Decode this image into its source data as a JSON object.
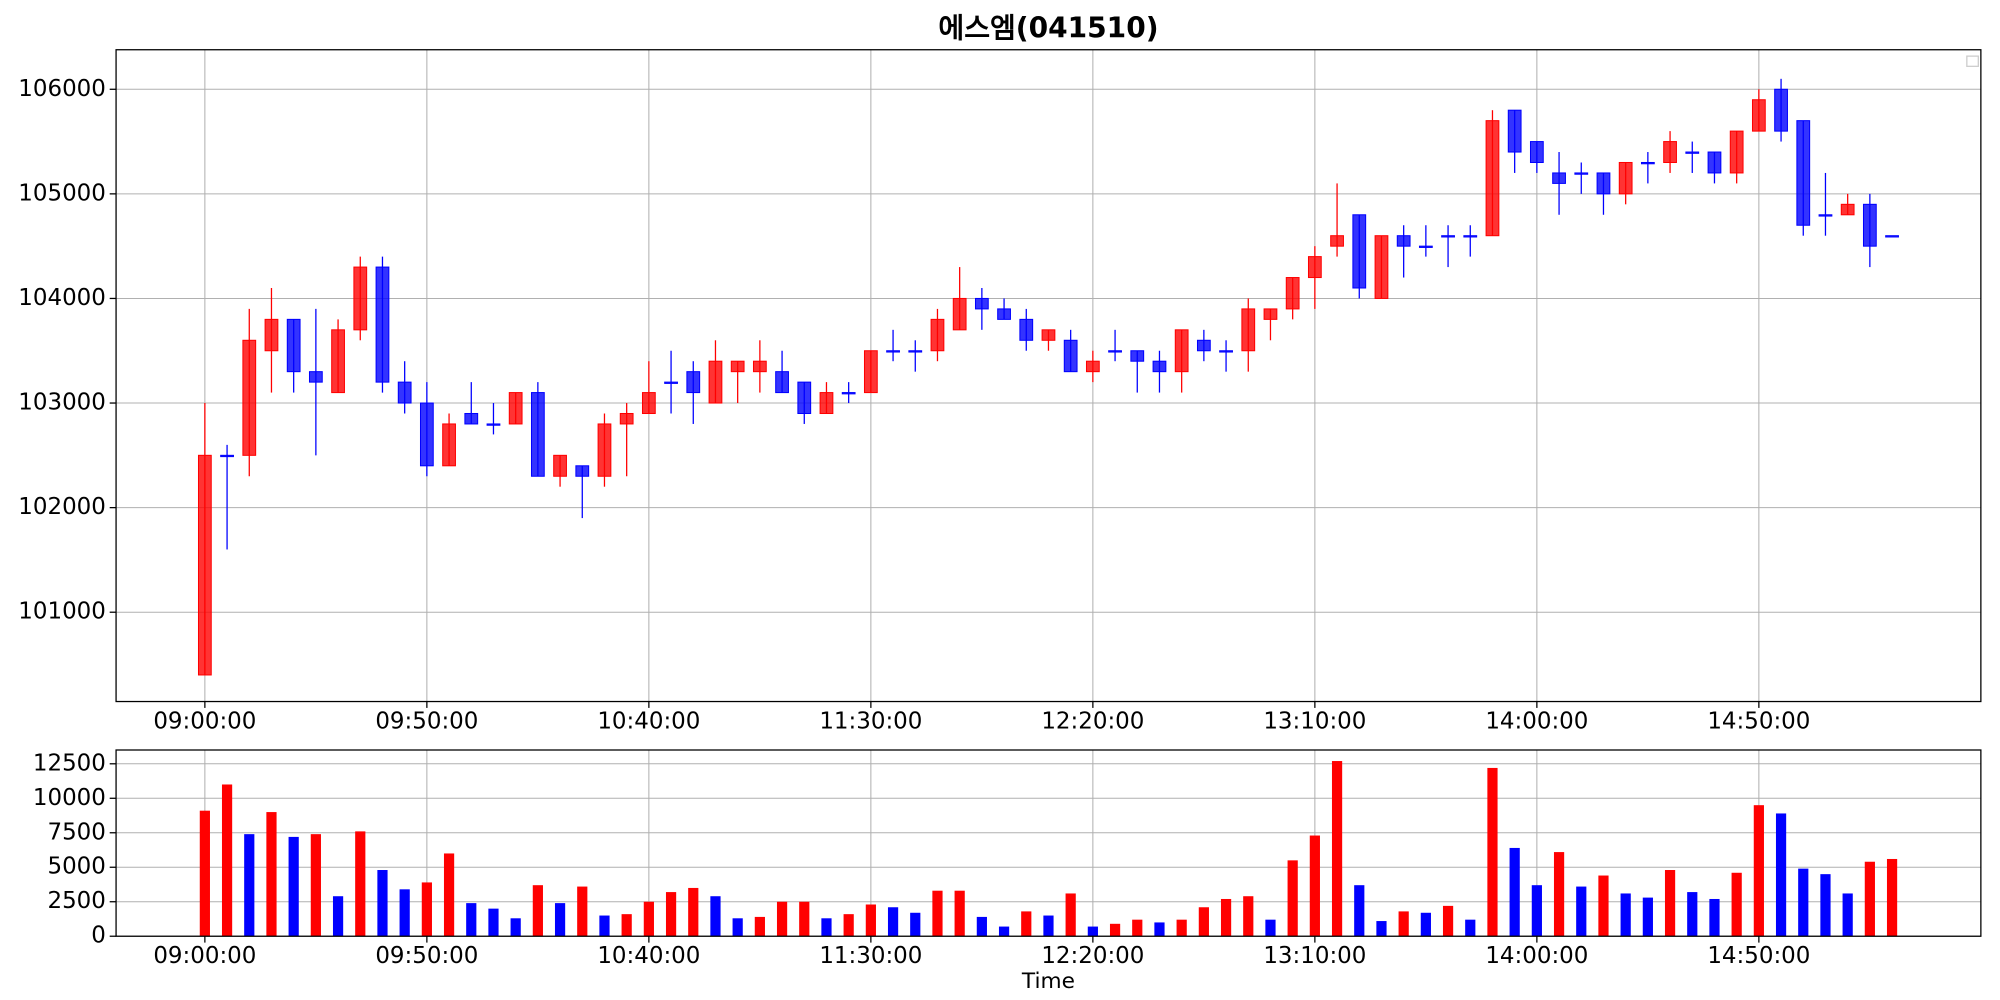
{
  "chart_data": [
    {
      "type": "candlestick",
      "title": "에스엠(041510)",
      "x": [
        "09:00:00",
        "09:05:00",
        "09:10:00",
        "09:15:00",
        "09:20:00",
        "09:25:00",
        "09:30:00",
        "09:35:00",
        "09:40:00",
        "09:45:00",
        "09:50:00",
        "09:55:00",
        "10:00:00",
        "10:05:00",
        "10:10:00",
        "10:15:00",
        "10:20:00",
        "10:25:00",
        "10:30:00",
        "10:35:00",
        "10:40:00",
        "10:45:00",
        "10:50:00",
        "10:55:00",
        "11:00:00",
        "11:05:00",
        "11:10:00",
        "11:15:00",
        "11:20:00",
        "11:25:00",
        "11:30:00",
        "11:35:00",
        "11:40:00",
        "11:45:00",
        "11:50:00",
        "11:55:00",
        "12:00:00",
        "12:05:00",
        "12:10:00",
        "12:15:00",
        "12:20:00",
        "12:25:00",
        "12:30:00",
        "12:35:00",
        "12:40:00",
        "12:45:00",
        "12:50:00",
        "12:55:00",
        "13:00:00",
        "13:05:00",
        "13:10:00",
        "13:15:00",
        "13:20:00",
        "13:25:00",
        "13:30:00",
        "13:35:00",
        "13:40:00",
        "13:45:00",
        "13:50:00",
        "13:55:00",
        "14:00:00",
        "14:05:00",
        "14:10:00",
        "14:15:00",
        "14:20:00",
        "14:25:00",
        "14:30:00",
        "14:35:00",
        "14:40:00",
        "14:45:00",
        "14:50:00",
        "14:55:00",
        "15:00:00",
        "15:05:00",
        "15:10:00",
        "15:15:00",
        "15:20:00"
      ],
      "open": [
        100400,
        102500,
        102500,
        103500,
        103800,
        103300,
        103100,
        103700,
        104300,
        103200,
        103000,
        102400,
        102900,
        102800,
        102800,
        103100,
        102300,
        102400,
        102300,
        102800,
        102900,
        103200,
        103300,
        103000,
        103300,
        103300,
        103300,
        103200,
        102900,
        103100,
        103100,
        103500,
        103500,
        103500,
        103700,
        104000,
        103900,
        103800,
        103600,
        103600,
        103300,
        103500,
        103500,
        103400,
        103300,
        103600,
        103500,
        103500,
        103800,
        103900,
        104200,
        104500,
        104800,
        104000,
        104600,
        104500,
        104600,
        104600,
        104600,
        105800,
        105500,
        105200,
        105200,
        105200,
        105000,
        105300,
        105300,
        105400,
        105400,
        105200,
        105600,
        106000,
        105700,
        104800,
        104800,
        104900,
        104600
      ],
      "high": [
        103000,
        102600,
        103900,
        104100,
        103800,
        103900,
        103800,
        104400,
        104400,
        103400,
        103200,
        102900,
        103200,
        103000,
        103100,
        103200,
        102500,
        102400,
        102900,
        103000,
        103400,
        103500,
        103400,
        103600,
        103400,
        103600,
        103500,
        103200,
        103200,
        103200,
        103500,
        103700,
        103600,
        103900,
        104300,
        104100,
        104000,
        103900,
        103700,
        103700,
        103500,
        103700,
        103500,
        103500,
        103700,
        103700,
        103600,
        104000,
        103900,
        104200,
        104500,
        105100,
        104800,
        104600,
        104700,
        104700,
        104700,
        104700,
        105800,
        105800,
        105500,
        105400,
        105300,
        105200,
        105300,
        105400,
        105600,
        105500,
        105400,
        105600,
        106000,
        106100,
        105700,
        105200,
        105000,
        105000,
        104600
      ],
      "low": [
        100400,
        101600,
        102300,
        103100,
        103100,
        102500,
        103100,
        103600,
        103100,
        102900,
        102300,
        102400,
        102800,
        102700,
        102800,
        102300,
        102200,
        101900,
        102200,
        102300,
        102900,
        102900,
        102800,
        103000,
        103000,
        103100,
        103100,
        102800,
        102900,
        103000,
        103100,
        103400,
        103300,
        103400,
        103700,
        103700,
        103800,
        103500,
        103500,
        103300,
        103200,
        103400,
        103100,
        103100,
        103100,
        103400,
        103300,
        103300,
        103600,
        103800,
        103900,
        104400,
        104000,
        104000,
        104200,
        104400,
        104300,
        104400,
        104600,
        105200,
        105200,
        104800,
        105000,
        104800,
        104900,
        105100,
        105200,
        105200,
        105100,
        105100,
        105600,
        105500,
        104600,
        104600,
        104800,
        104300,
        104600
      ],
      "close": [
        102500,
        102500,
        103600,
        103800,
        103300,
        103200,
        103700,
        104300,
        103200,
        103000,
        102400,
        102800,
        102800,
        102800,
        103100,
        102300,
        102500,
        102300,
        102800,
        102900,
        103100,
        103200,
        103100,
        103400,
        103400,
        103400,
        103100,
        102900,
        103100,
        103100,
        103500,
        103500,
        103500,
        103800,
        104000,
        103900,
        103800,
        103600,
        103700,
        103300,
        103400,
        103500,
        103400,
        103300,
        103700,
        103500,
        103500,
        103900,
        103900,
        104200,
        104400,
        104600,
        104100,
        104600,
        104500,
        104500,
        104600,
        104600,
        105700,
        105400,
        105300,
        105100,
        105200,
        105000,
        105300,
        105300,
        105500,
        105400,
        105200,
        105600,
        105900,
        105600,
        104700,
        104800,
        104900,
        104500,
        104600
      ],
      "up_color": "#ff0000",
      "down_color": "#0000ff",
      "ylim": [
        100146,
        106378
      ],
      "yticks": [
        101000,
        102000,
        103000,
        104000,
        105000,
        106000
      ],
      "xticks": [
        "09:00:00",
        "09:50:00",
        "10:40:00",
        "11:30:00",
        "12:20:00",
        "13:10:00",
        "14:00:00",
        "14:50:00"
      ],
      "grid": true
    },
    {
      "type": "bar",
      "xlabel": "Time",
      "x": [
        "09:00:00",
        "09:05:00",
        "09:10:00",
        "09:15:00",
        "09:20:00",
        "09:25:00",
        "09:30:00",
        "09:35:00",
        "09:40:00",
        "09:45:00",
        "09:50:00",
        "09:55:00",
        "10:00:00",
        "10:05:00",
        "10:10:00",
        "10:15:00",
        "10:20:00",
        "10:25:00",
        "10:30:00",
        "10:35:00",
        "10:40:00",
        "10:45:00",
        "10:50:00",
        "10:55:00",
        "11:00:00",
        "11:05:00",
        "11:10:00",
        "11:15:00",
        "11:20:00",
        "11:25:00",
        "11:30:00",
        "11:35:00",
        "11:40:00",
        "11:45:00",
        "11:50:00",
        "11:55:00",
        "12:00:00",
        "12:05:00",
        "12:10:00",
        "12:15:00",
        "12:20:00",
        "12:25:00",
        "12:30:00",
        "12:35:00",
        "12:40:00",
        "12:45:00",
        "12:50:00",
        "12:55:00",
        "13:00:00",
        "13:05:00",
        "13:10:00",
        "13:15:00",
        "13:20:00",
        "13:25:00",
        "13:30:00",
        "13:35:00",
        "13:40:00",
        "13:45:00",
        "13:50:00",
        "13:55:00",
        "14:00:00",
        "14:05:00",
        "14:10:00",
        "14:15:00",
        "14:20:00",
        "14:25:00",
        "14:30:00",
        "14:35:00",
        "14:40:00",
        "14:45:00",
        "14:50:00",
        "14:55:00",
        "15:00:00",
        "15:05:00",
        "15:10:00",
        "15:15:00",
        "15:20:00"
      ],
      "values": [
        9100,
        11000,
        7400,
        9000,
        7200,
        7400,
        2900,
        7600,
        4800,
        3400,
        3900,
        6000,
        2400,
        2000,
        1300,
        3700,
        2400,
        3600,
        1500,
        1600,
        2500,
        3200,
        3500,
        2900,
        1300,
        1400,
        2500,
        2500,
        1300,
        1600,
        2300,
        2100,
        1700,
        3300,
        3300,
        1400,
        700,
        1800,
        1500,
        3100,
        700,
        900,
        1200,
        1000,
        1200,
        2100,
        2700,
        2900,
        1200,
        5500,
        7300,
        12700,
        3700,
        1100,
        1800,
        1700,
        2200,
        1200,
        12200,
        6400,
        3700,
        6100,
        3600,
        4400,
        3100,
        2800,
        4800,
        3200,
        2700,
        4600,
        9500,
        8900,
        4900,
        4500,
        3100,
        5400,
        5600
      ],
      "up_color": "#ff0000",
      "down_color": "#0000ff",
      "ylim": [
        0,
        13500
      ],
      "yticks": [
        0,
        2500,
        5000,
        7500,
        10000,
        12500
      ],
      "xticks": [
        "09:00:00",
        "09:50:00",
        "10:40:00",
        "11:30:00",
        "12:20:00",
        "13:10:00",
        "14:00:00",
        "14:50:00"
      ],
      "grid": true
    }
  ]
}
